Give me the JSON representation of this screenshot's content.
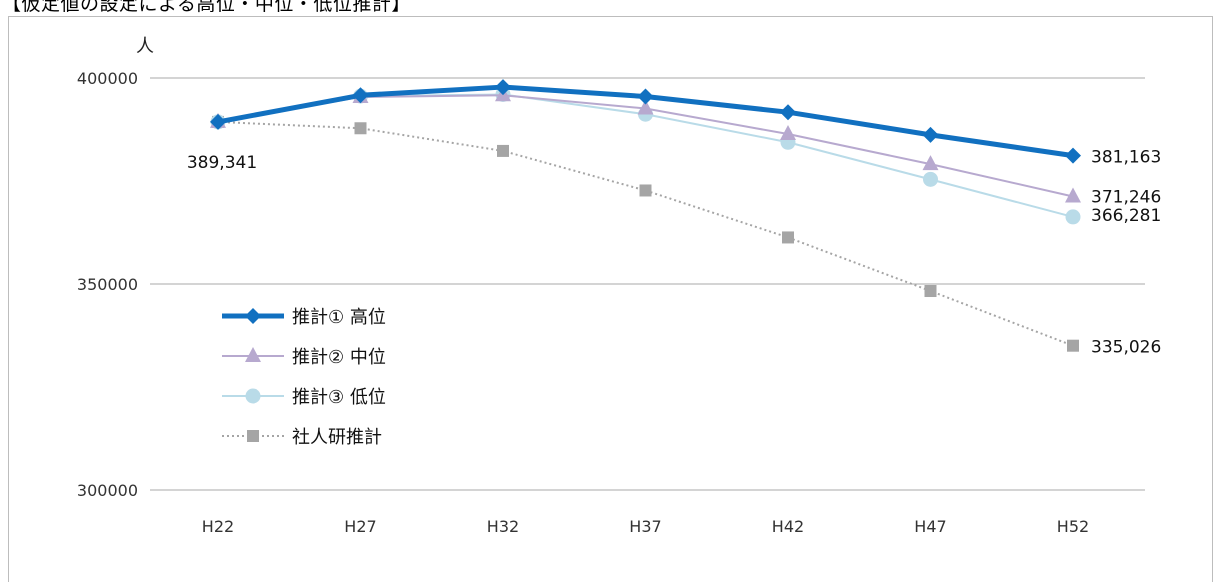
{
  "page_title": "【仮定値の設定による高位・中位・低位推計】",
  "chart_data": {
    "type": "line",
    "title": "",
    "ylabel": "人",
    "xlabel": "",
    "ylim": [
      300000,
      400000
    ],
    "yticks": [
      "300000",
      "350000",
      "400000"
    ],
    "categories": [
      "H22",
      "H27",
      "H32",
      "H37",
      "H42",
      "H47",
      "H52"
    ],
    "grid": true,
    "legend_position": "middle-left",
    "series": [
      {
        "name": "推計① 高位",
        "marker": "diamond",
        "color": "#1170c0",
        "style": "solid-thick",
        "values": [
          389341,
          395800,
          397800,
          395500,
          391700,
          386200,
          381163
        ]
      },
      {
        "name": "推計② 中位",
        "marker": "triangle",
        "color": "#b7a9cf",
        "style": "solid",
        "values": [
          389341,
          395400,
          395800,
          392600,
          386400,
          379100,
          371246
        ]
      },
      {
        "name": "推計③ 低位",
        "marker": "circle",
        "color": "#b9dbe8",
        "style": "solid",
        "values": [
          389341,
          395600,
          396000,
          391200,
          384400,
          375400,
          366281
        ]
      },
      {
        "name": "社人研推計",
        "marker": "square",
        "color": "#a5a5a5",
        "style": "dotted",
        "values": [
          389341,
          387800,
          382300,
          372700,
          361300,
          348300,
          335026
        ]
      }
    ],
    "data_labels": [
      {
        "text": "389,341"
      },
      {
        "text": "381,163"
      },
      {
        "text": "371,246"
      },
      {
        "text": "366,281"
      },
      {
        "text": "335,026"
      }
    ]
  }
}
